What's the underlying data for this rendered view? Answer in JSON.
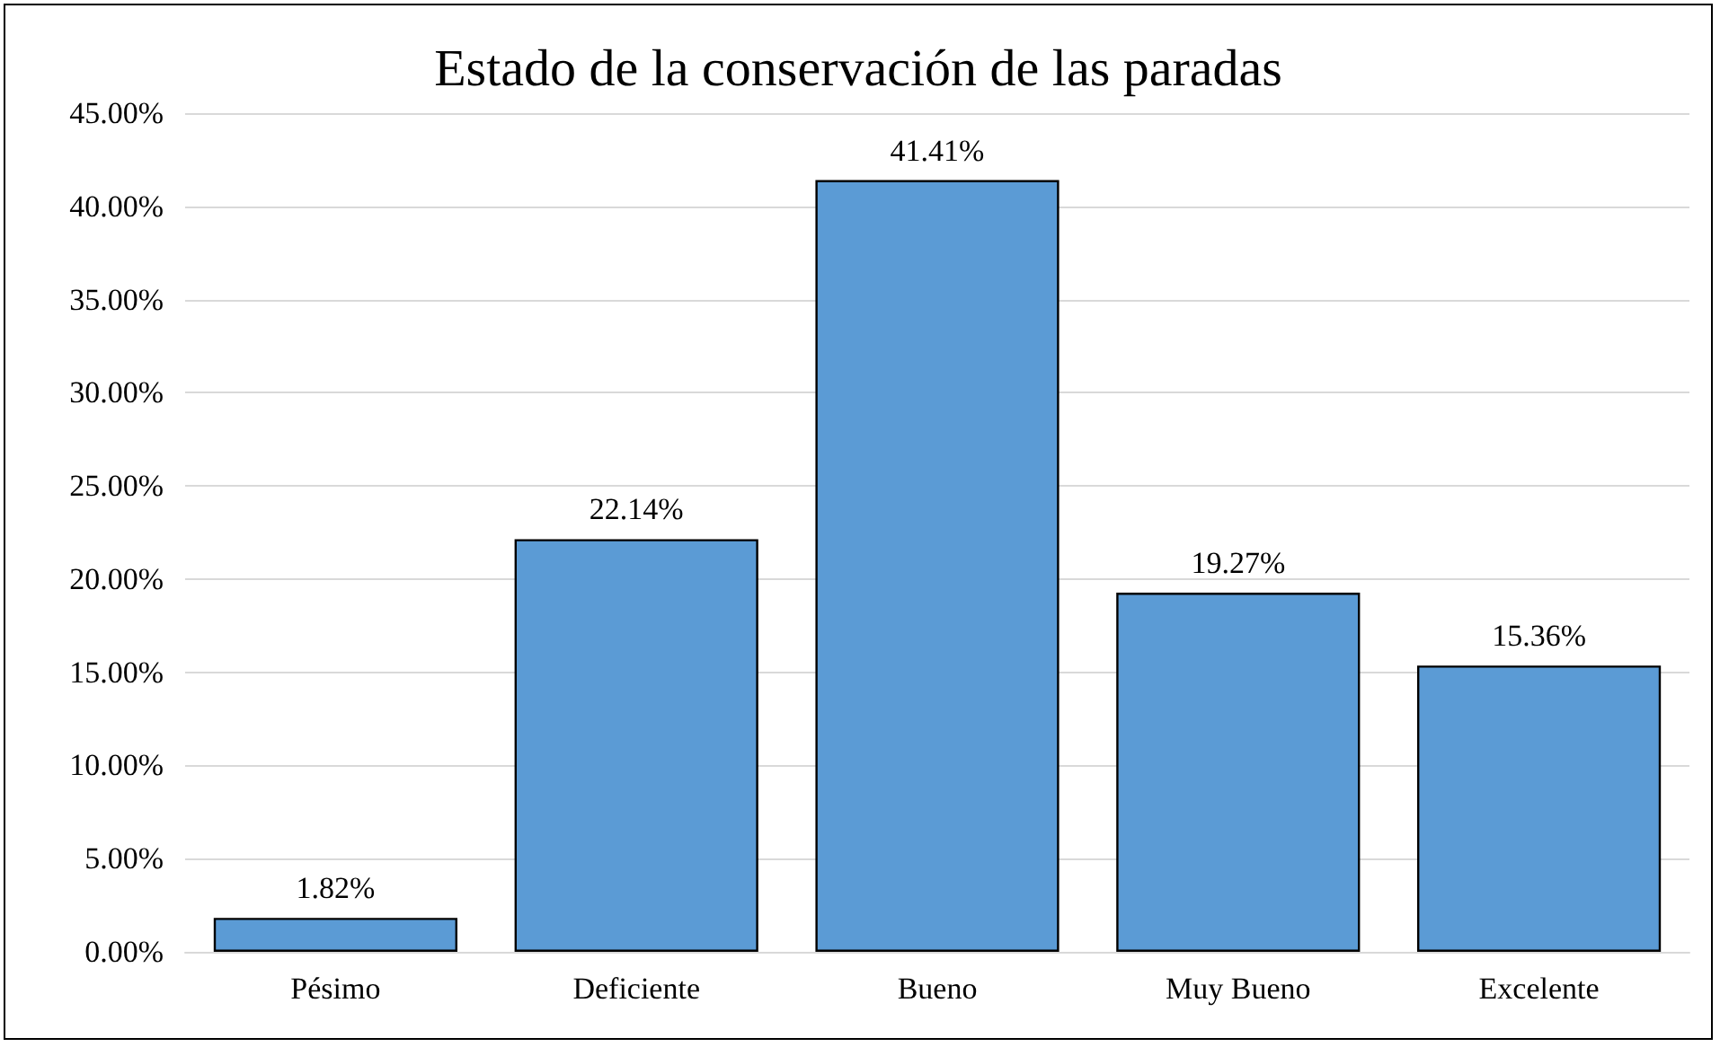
{
  "chart_data": {
    "type": "bar",
    "title": "Estado de la conservación de las paradas",
    "categories": [
      "Pésimo",
      "Deficiente",
      "Bueno",
      "Muy Bueno",
      "Excelente"
    ],
    "values": [
      1.82,
      22.14,
      41.41,
      19.27,
      15.36
    ],
    "value_labels": [
      "1.82%",
      "22.14%",
      "41.41%",
      "19.27%",
      "15.36%"
    ],
    "color": "#5b9bd5",
    "ylim": [
      0,
      45
    ],
    "yticks": [
      {
        "value": 0,
        "label": "0.00%"
      },
      {
        "value": 5,
        "label": "5.00%"
      },
      {
        "value": 10,
        "label": "10.00%"
      },
      {
        "value": 15,
        "label": "15.00%"
      },
      {
        "value": 20,
        "label": "20.00%"
      },
      {
        "value": 25,
        "label": "25.00%"
      },
      {
        "value": 30,
        "label": "30.00%"
      },
      {
        "value": 35,
        "label": "35.00%"
      },
      {
        "value": 40,
        "label": "40.00%"
      },
      {
        "value": 45,
        "label": "45.00%"
      }
    ],
    "grid": "y"
  }
}
